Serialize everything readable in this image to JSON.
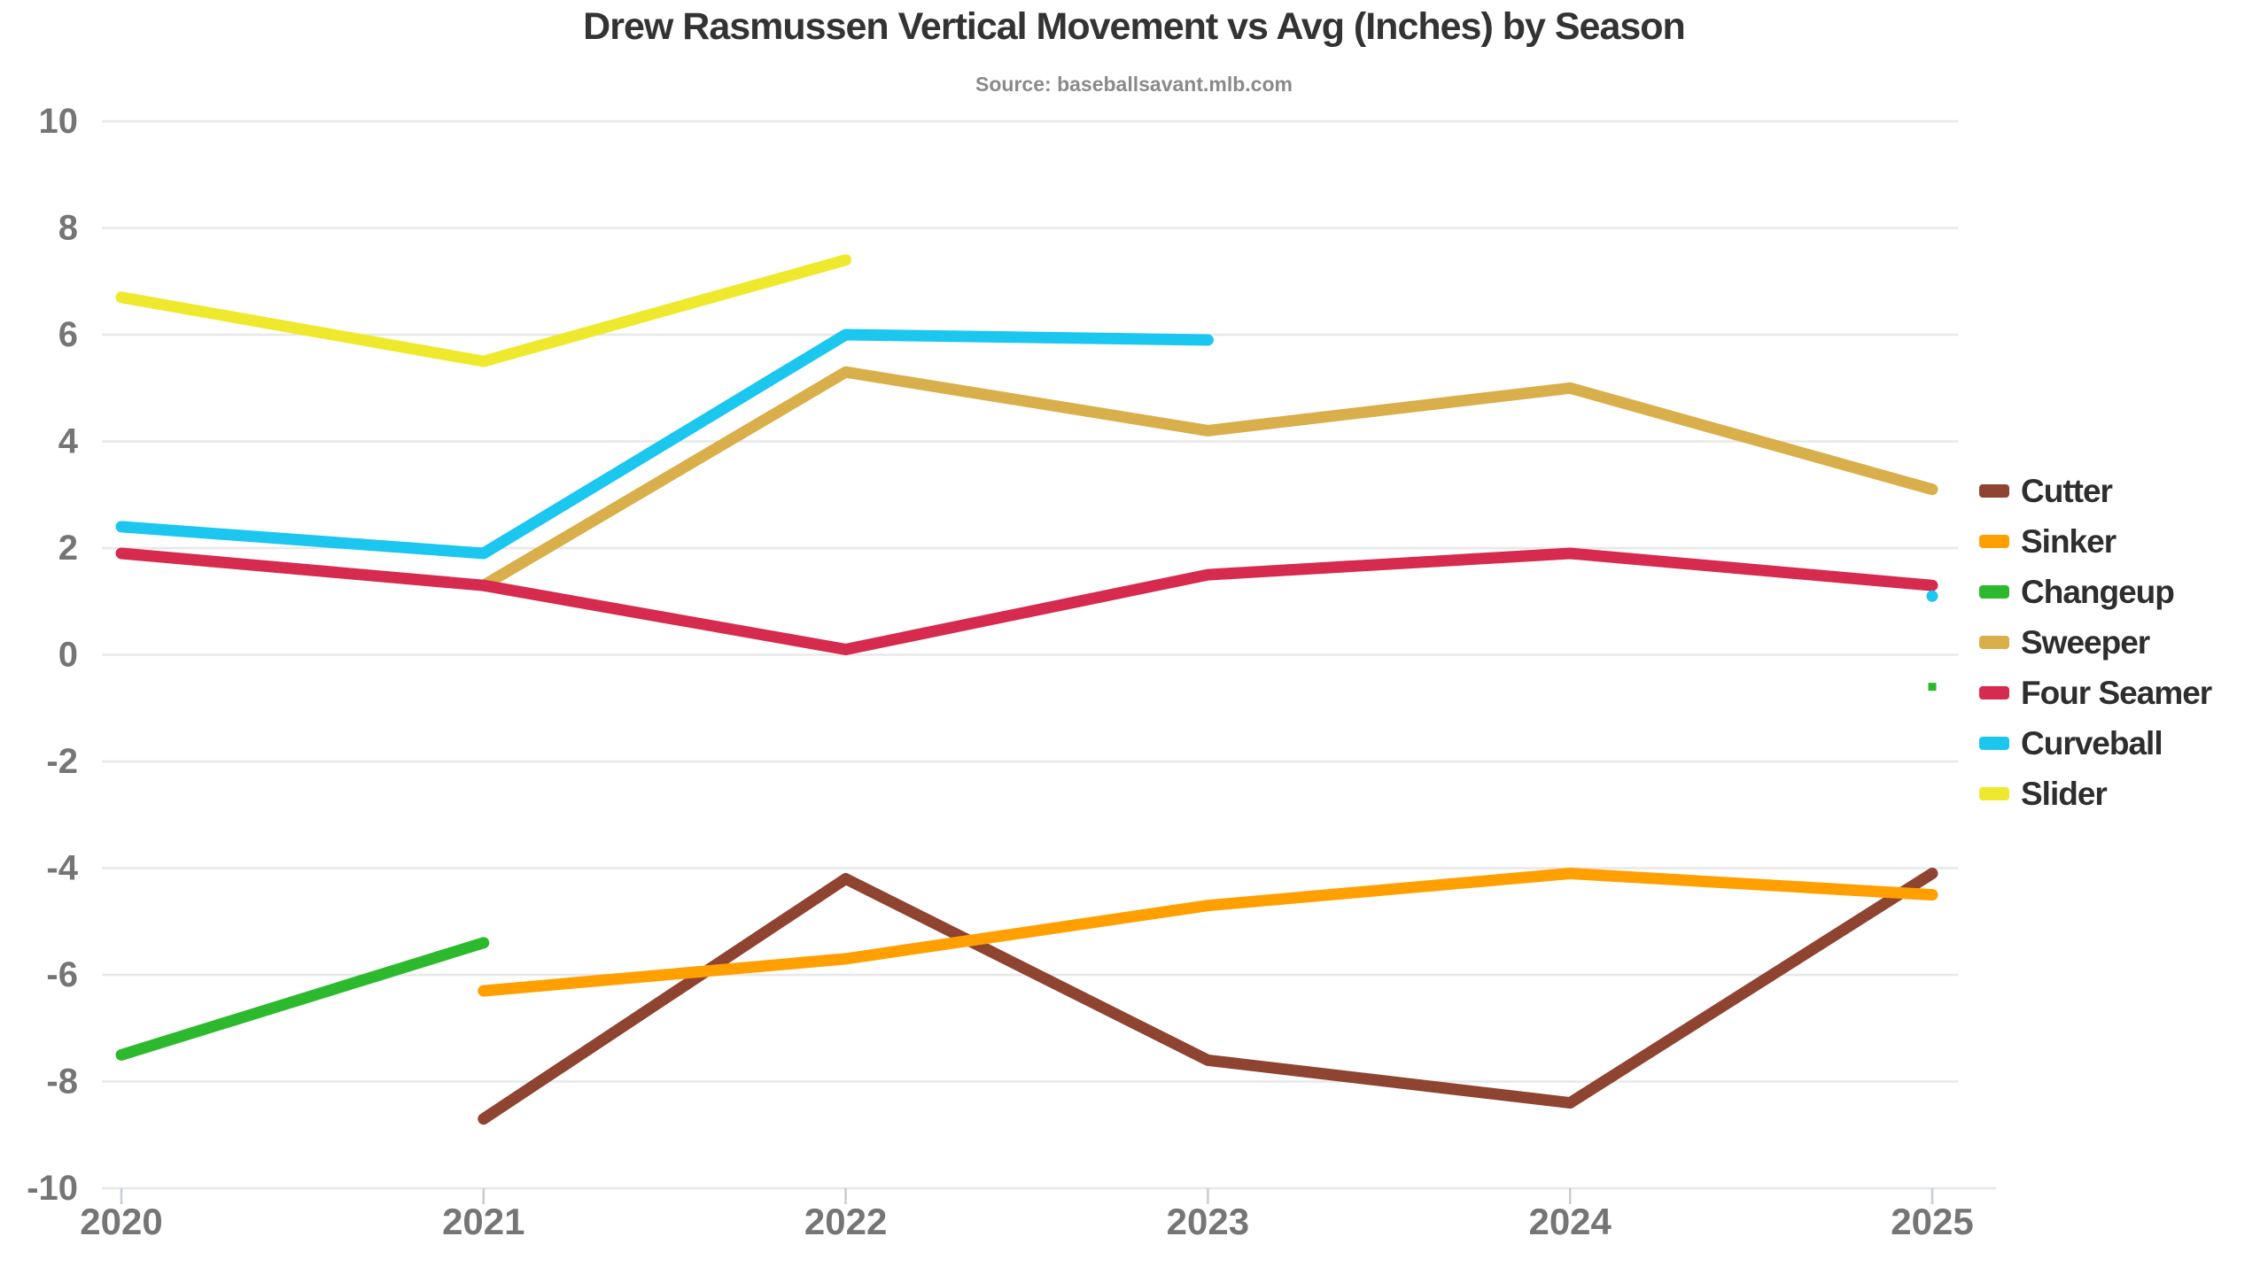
{
  "title": "Drew Rasmussen Vertical Movement vs Avg (Inches) by Season",
  "subtitle": "Source: baseballsavant.mlb.com",
  "axes": {
    "x_ticks": [
      "2020",
      "2021",
      "2022",
      "2023",
      "2024",
      "2025"
    ],
    "y_ticks": [
      "10",
      "8",
      "6",
      "4",
      "2",
      "0",
      "-2",
      "-4",
      "-6",
      "-8",
      "-10"
    ]
  },
  "colors": {
    "grid": "#e8e8e8",
    "axis_label": "#757575",
    "tick_mark": "#c5ccd3",
    "background": "#ffffff"
  },
  "chart_data": {
    "type": "line",
    "x": [
      2020,
      2021,
      2022,
      2023,
      2024,
      2025
    ],
    "xlabel": "",
    "ylabel": "",
    "ylim": [
      -10,
      10
    ],
    "ytick_step": 2,
    "grid": true,
    "legend_position": "right",
    "title": "Drew Rasmussen Vertical Movement vs Avg (Inches) by Season",
    "subtitle": "Source: baseballsavant.mlb.com",
    "series": [
      {
        "name": "Cutter",
        "color": "#8e4430",
        "values": [
          null,
          -8.7,
          -4.2,
          -7.6,
          -8.4,
          -4.1
        ]
      },
      {
        "name": "Sinker",
        "color": "#ffa000",
        "values": [
          null,
          -6.3,
          -5.7,
          -4.7,
          -4.1,
          -4.5
        ]
      },
      {
        "name": "Changeup",
        "color": "#2db92d",
        "values": [
          -7.5,
          -5.4,
          null,
          null,
          null,
          -0.6
        ],
        "isolated_marker": "square"
      },
      {
        "name": "Sweeper",
        "color": "#d8af4a",
        "values": [
          null,
          1.3,
          5.3,
          4.2,
          5.0,
          3.1
        ]
      },
      {
        "name": "Four Seamer",
        "color": "#d62a4e",
        "values": [
          1.9,
          1.3,
          0.1,
          1.5,
          1.9,
          1.3
        ]
      },
      {
        "name": "Curveball",
        "color": "#1bc7ef",
        "values": [
          2.4,
          1.9,
          6.0,
          5.9,
          null,
          1.1
        ],
        "isolated_marker": "circle"
      },
      {
        "name": "Slider",
        "color": "#efe92e",
        "values": [
          6.7,
          5.5,
          7.4,
          null,
          null,
          null
        ]
      }
    ]
  }
}
